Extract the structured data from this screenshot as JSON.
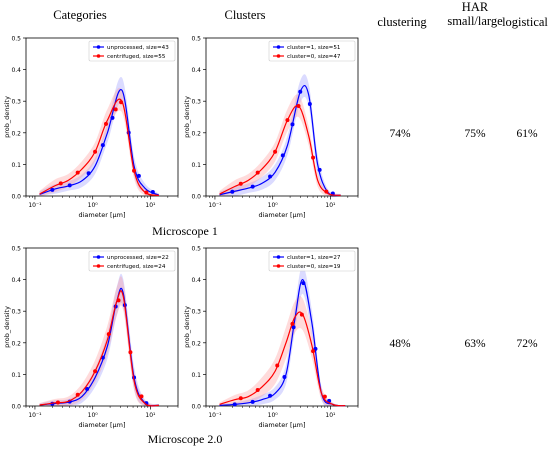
{
  "headers": {
    "categories": "Categories",
    "clusters": "Clusters",
    "clustering": "clustering",
    "har_line1": "HAR",
    "har_line2": "small/large",
    "logistical": "logistical"
  },
  "rows": [
    {
      "label": "Microscope 1",
      "clustering": "74%",
      "har": "75%",
      "logistical": "61%"
    },
    {
      "label": "Microscope 2.0",
      "clustering": "48%",
      "har": "63%",
      "logistical": "72%"
    }
  ],
  "colors": {
    "blue": "#0000ff",
    "red": "#ff0000",
    "blue_band": "#9999ff",
    "red_band": "#ff9999"
  },
  "chart_data": [
    {
      "type": "line",
      "panel": "microscope1-categories",
      "xlabel": "diameter [µm]",
      "ylabel": "prob_density",
      "xscale": "log",
      "xlim": [
        0.07,
        30
      ],
      "ylim": [
        0,
        0.5
      ],
      "yticks": [
        0.0,
        0.1,
        0.2,
        0.3,
        0.4,
        0.5
      ],
      "xticks": [
        "10⁻¹",
        "10⁰",
        "10¹"
      ],
      "legend_position": "top-right",
      "series": [
        {
          "name": "unprocessed, size=43",
          "color": "#0000ff",
          "x": [
            0.12,
            0.22,
            0.38,
            0.65,
            1.1,
            1.8,
            3.2,
            5.2,
            8.0,
            14
          ],
          "y": [
            0.005,
            0.022,
            0.032,
            0.048,
            0.095,
            0.2,
            0.335,
            0.095,
            0.025,
            0.003
          ],
          "band": [
            0.01,
            0.015,
            0.015,
            0.02,
            0.025,
            0.03,
            0.04,
            0.03,
            0.015,
            0.005
          ]
        },
        {
          "name": "centrifuged, size=55",
          "color": "#ff0000",
          "x": [
            0.12,
            0.22,
            0.38,
            0.65,
            1.1,
            1.8,
            3.2,
            5.2,
            8.0,
            14
          ],
          "y": [
            0.006,
            0.032,
            0.05,
            0.085,
            0.14,
            0.24,
            0.3,
            0.08,
            0.012,
            0.002
          ],
          "band": [
            0.01,
            0.02,
            0.02,
            0.025,
            0.03,
            0.035,
            0.035,
            0.025,
            0.01,
            0.004
          ]
        }
      ],
      "markers": {
        "unprocessed, size=43": [
          0.2,
          0.4,
          0.85,
          1.5,
          2.2,
          4.2,
          6.3,
          11
        ],
        "centrifuged, size=55": [
          0.28,
          0.55,
          1.1,
          1.7,
          2.5,
          3.1,
          5.2,
          8.5
        ]
      }
    },
    {
      "type": "line",
      "panel": "microscope1-clusters",
      "xlabel": "diameter [µm]",
      "ylabel": "prob_density",
      "xscale": "log",
      "xlim": [
        0.07,
        30
      ],
      "ylim": [
        0,
        0.5
      ],
      "yticks": [
        0.0,
        0.1,
        0.2,
        0.3,
        0.4,
        0.5
      ],
      "xticks": [
        "10⁻¹",
        "10⁰",
        "10¹"
      ],
      "legend_position": "top-right",
      "series": [
        {
          "name": "cluster=1, size=51",
          "color": "#0000ff",
          "x": [
            0.12,
            0.22,
            0.38,
            0.65,
            1.1,
            1.8,
            3.0,
            4.2,
            6.0,
            9.0,
            15
          ],
          "y": [
            0.004,
            0.015,
            0.025,
            0.04,
            0.075,
            0.16,
            0.33,
            0.32,
            0.1,
            0.012,
            0.002
          ],
          "band": [
            0.01,
            0.015,
            0.015,
            0.02,
            0.025,
            0.03,
            0.035,
            0.035,
            0.03,
            0.01,
            0.004
          ]
        },
        {
          "name": "cluster=0, size=47",
          "color": "#ff0000",
          "x": [
            0.12,
            0.22,
            0.38,
            0.65,
            1.1,
            1.8,
            2.8,
            4.2,
            6.0,
            9.0,
            15
          ],
          "y": [
            0.006,
            0.03,
            0.05,
            0.085,
            0.14,
            0.24,
            0.285,
            0.19,
            0.05,
            0.008,
            0.002
          ],
          "band": [
            0.01,
            0.02,
            0.02,
            0.025,
            0.03,
            0.035,
            0.035,
            0.03,
            0.02,
            0.008,
            0.004
          ]
        }
      ],
      "markers": {
        "cluster=1, size=51": [
          0.2,
          0.45,
          0.9,
          1.5,
          2.2,
          3.0,
          4.4,
          6.5,
          11
        ],
        "cluster=0, size=47": [
          0.28,
          0.55,
          1.1,
          1.8,
          2.8,
          5.0,
          8.5
        ]
      }
    },
    {
      "type": "line",
      "panel": "microscope2-categories",
      "xlabel": "diameter [µm]",
      "ylabel": "prob_density",
      "xscale": "log",
      "xlim": [
        0.07,
        30
      ],
      "ylim": [
        0,
        0.5
      ],
      "yticks": [
        0.0,
        0.1,
        0.2,
        0.3,
        0.4,
        0.5
      ],
      "xticks": [
        "10⁻¹",
        "10⁰",
        "10¹"
      ],
      "legend_position": "top-right",
      "series": [
        {
          "name": "unprocessed, size=22",
          "color": "#0000ff",
          "x": [
            0.12,
            0.22,
            0.38,
            0.65,
            1.1,
            1.8,
            2.6,
            3.4,
            5.2,
            8.0,
            14
          ],
          "y": [
            0.003,
            0.008,
            0.012,
            0.03,
            0.09,
            0.19,
            0.33,
            0.355,
            0.09,
            0.01,
            0.002
          ],
          "band": [
            0.005,
            0.01,
            0.01,
            0.02,
            0.03,
            0.04,
            0.045,
            0.045,
            0.035,
            0.01,
            0.004
          ]
        },
        {
          "name": "centrifuged, size=24",
          "color": "#ff0000",
          "x": [
            0.12,
            0.22,
            0.38,
            0.65,
            1.1,
            1.8,
            2.6,
            3.4,
            5.2,
            8.0,
            14
          ],
          "y": [
            0.003,
            0.01,
            0.015,
            0.045,
            0.11,
            0.21,
            0.33,
            0.345,
            0.08,
            0.008,
            0.002
          ],
          "band": [
            0.006,
            0.012,
            0.015,
            0.025,
            0.035,
            0.045,
            0.045,
            0.045,
            0.03,
            0.01,
            0.004
          ]
        }
      ],
      "markers": {
        "unprocessed, size=22": [
          0.2,
          0.4,
          0.8,
          1.5,
          2.5,
          3.6,
          5.2,
          8.5
        ],
        "centrifuged, size=24": [
          0.25,
          0.55,
          1.1,
          1.9,
          2.8,
          4.5,
          7.0
        ]
      }
    },
    {
      "type": "line",
      "panel": "microscope2-clusters",
      "xlabel": "diameter [µm]",
      "ylabel": "prob_density",
      "xscale": "log",
      "xlim": [
        0.07,
        30
      ],
      "ylim": [
        0,
        0.5
      ],
      "yticks": [
        0.0,
        0.1,
        0.2,
        0.3,
        0.4,
        0.5
      ],
      "xticks": [
        "10⁻¹",
        "10⁰",
        "10¹"
      ],
      "legend_position": "top-right",
      "series": [
        {
          "name": "cluster=1, size=27",
          "color": "#0000ff",
          "x": [
            0.12,
            0.22,
            0.38,
            0.65,
            1.1,
            1.7,
            2.4,
            3.3,
            4.8,
            7.0,
            11,
            18
          ],
          "y": [
            0.002,
            0.005,
            0.01,
            0.02,
            0.04,
            0.1,
            0.27,
            0.4,
            0.26,
            0.04,
            0.005,
            0.001
          ],
          "band": [
            0.004,
            0.006,
            0.01,
            0.015,
            0.02,
            0.03,
            0.04,
            0.045,
            0.04,
            0.02,
            0.005,
            0.002
          ]
        },
        {
          "name": "cluster=0, size=19",
          "color": "#ff0000",
          "x": [
            0.12,
            0.22,
            0.38,
            0.65,
            1.1,
            1.7,
            2.4,
            3.3,
            4.8,
            7.0,
            11,
            18
          ],
          "y": [
            0.005,
            0.02,
            0.03,
            0.06,
            0.11,
            0.2,
            0.28,
            0.29,
            0.19,
            0.04,
            0.005,
            0.001
          ],
          "band": [
            0.006,
            0.015,
            0.02,
            0.03,
            0.04,
            0.05,
            0.05,
            0.05,
            0.04,
            0.02,
            0.005,
            0.002
          ]
        }
      ],
      "markers": {
        "cluster=1, size=27": [
          0.22,
          0.45,
          0.9,
          1.6,
          2.3,
          3.4,
          5.5,
          9.5
        ],
        "cluster=0, size=19": [
          0.28,
          0.55,
          1.2,
          2.2,
          3.2,
          5.0,
          8.0
        ]
      }
    }
  ]
}
